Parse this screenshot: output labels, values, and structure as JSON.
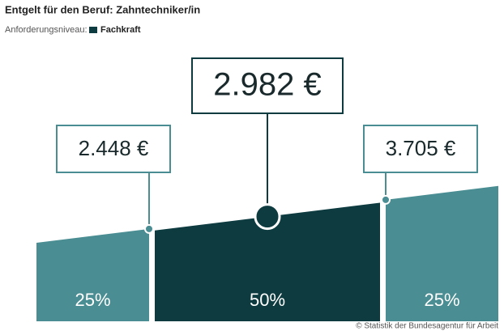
{
  "chart_data": {
    "type": "quartile-band",
    "title": "Entgelt für den Beruf: Zahntechniker/in",
    "legend_label": "Anforderungsniveau:",
    "series": [
      {
        "name": "Fachkraft",
        "color": "#0d3b3f",
        "values": [
          2448,
          2982,
          3705
        ],
        "value_labels": [
          "2.448 €",
          "2.982 €",
          "3.705 €"
        ]
      }
    ],
    "shares": {
      "color": "#4a8d92",
      "values": [
        25,
        50,
        25
      ],
      "value_labels": [
        "25%",
        "50%",
        "25%"
      ]
    },
    "source": "© Statistik der Bundesagentur für Arbeit"
  }
}
